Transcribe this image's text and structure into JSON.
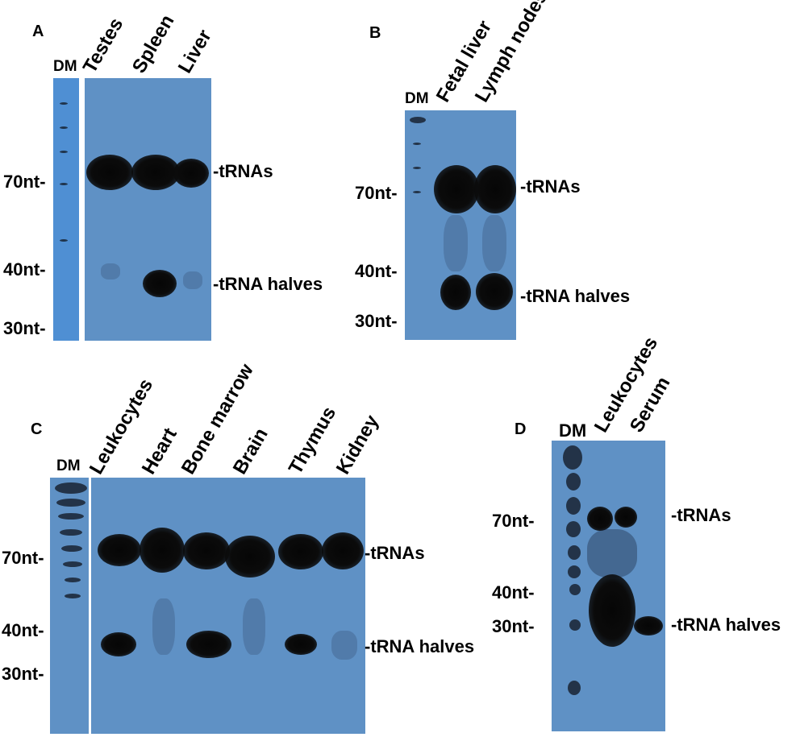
{
  "panels": {
    "A": {
      "letter": "A",
      "dm": "DM",
      "lanes": [
        "Testes",
        "Spleen",
        "Liver"
      ],
      "sizes": [
        "70nt-",
        "40nt-",
        "30nt-"
      ],
      "bands": [
        "-tRNAs",
        "-tRNA halves"
      ]
    },
    "B": {
      "letter": "B",
      "dm": "DM",
      "lanes": [
        "Fetal liver",
        "Lymph nodes"
      ],
      "sizes": [
        "70nt-",
        "40nt-",
        "30nt-"
      ],
      "bands": [
        "-tRNAs",
        "-tRNA halves"
      ]
    },
    "C": {
      "letter": "C",
      "dm": "DM",
      "lanes": [
        "Leukocytes",
        "Heart",
        "Bone marrow",
        "Brain",
        "Thymus",
        "Kidney"
      ],
      "sizes": [
        "70nt-",
        "40nt-",
        "30nt-"
      ],
      "bands": [
        "-tRNAs",
        "-tRNA halves"
      ]
    },
    "D": {
      "letter": "D",
      "dm": "DM",
      "lanes": [
        "Leukocytes",
        "Serum"
      ],
      "sizes": [
        "70nt-",
        "40nt-",
        "30nt-"
      ],
      "bands": [
        "-tRNAs",
        "-tRNA halves"
      ]
    }
  }
}
